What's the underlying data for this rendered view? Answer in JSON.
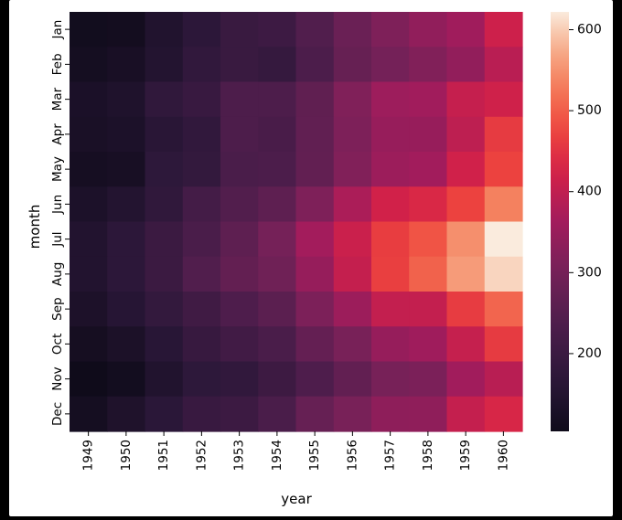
{
  "chart_data": {
    "type": "heatmap",
    "xlabel": "year",
    "ylabel": "month",
    "x": [
      "1949",
      "1950",
      "1951",
      "1952",
      "1953",
      "1954",
      "1955",
      "1956",
      "1957",
      "1958",
      "1959",
      "1960"
    ],
    "y": [
      "Jan",
      "Feb",
      "Mar",
      "Apr",
      "May",
      "Jun",
      "Jul",
      "Aug",
      "Sep",
      "Oct",
      "Nov",
      "Dec"
    ],
    "values": [
      [
        112,
        115,
        145,
        171,
        196,
        204,
        242,
        284,
        315,
        340,
        360,
        417
      ],
      [
        118,
        126,
        150,
        180,
        196,
        188,
        233,
        277,
        301,
        318,
        342,
        391
      ],
      [
        132,
        141,
        178,
        193,
        236,
        235,
        267,
        317,
        356,
        362,
        406,
        419
      ],
      [
        129,
        135,
        163,
        181,
        235,
        227,
        269,
        313,
        348,
        348,
        396,
        461
      ],
      [
        121,
        125,
        172,
        183,
        229,
        234,
        270,
        318,
        355,
        363,
        420,
        472
      ],
      [
        135,
        149,
        178,
        218,
        243,
        264,
        315,
        374,
        422,
        435,
        472,
        535
      ],
      [
        148,
        170,
        199,
        230,
        264,
        302,
        364,
        413,
        465,
        491,
        548,
        622
      ],
      [
        148,
        170,
        199,
        242,
        272,
        293,
        347,
        405,
        467,
        505,
        559,
        606
      ],
      [
        136,
        158,
        184,
        209,
        237,
        259,
        312,
        355,
        404,
        404,
        463,
        508
      ],
      [
        119,
        133,
        162,
        191,
        211,
        229,
        274,
        306,
        347,
        359,
        407,
        461
      ],
      [
        104,
        114,
        146,
        172,
        180,
        203,
        237,
        271,
        305,
        310,
        362,
        390
      ],
      [
        118,
        140,
        166,
        194,
        201,
        229,
        278,
        306,
        336,
        337,
        405,
        432
      ]
    ],
    "colorbar": {
      "ticks": [
        200,
        300,
        400,
        500,
        600
      ],
      "range": [
        104,
        622
      ]
    },
    "colormap": "rocket"
  }
}
